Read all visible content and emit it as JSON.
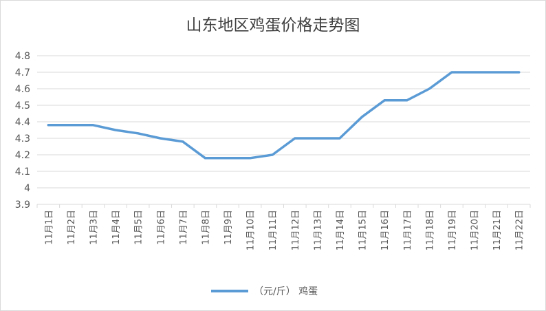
{
  "chart_data": {
    "type": "line",
    "title": "山东地区鸡蛋价格走势图",
    "xlabel": "",
    "ylabel": "",
    "ylim": [
      3.9,
      4.8
    ],
    "yticks": [
      "3.9",
      "4",
      "4.1",
      "4.2",
      "4.3",
      "4.4",
      "4.5",
      "4.6",
      "4.7",
      "4.8"
    ],
    "grid": true,
    "legend_position": "bottom",
    "categories": [
      "11月1日",
      "11月2日",
      "11月3日",
      "11月4日",
      "11月5日",
      "11月6日",
      "11月7日",
      "11月8日",
      "11月9日",
      "11月10日",
      "11月11日",
      "11月12日",
      "11月13日",
      "11月14日",
      "11月15日",
      "11月16日",
      "11月17日",
      "11月18日",
      "11月19日",
      "11月20日",
      "11月21日",
      "11月22日"
    ],
    "series": [
      {
        "name": "（元/斤） 鸡蛋",
        "color": "#5b9bd5",
        "values": [
          4.38,
          4.38,
          4.38,
          4.35,
          4.33,
          4.3,
          4.28,
          4.18,
          4.18,
          4.18,
          4.2,
          4.3,
          4.3,
          4.3,
          4.43,
          4.53,
          4.53,
          4.6,
          4.7,
          4.7,
          4.7,
          4.7
        ]
      }
    ]
  }
}
